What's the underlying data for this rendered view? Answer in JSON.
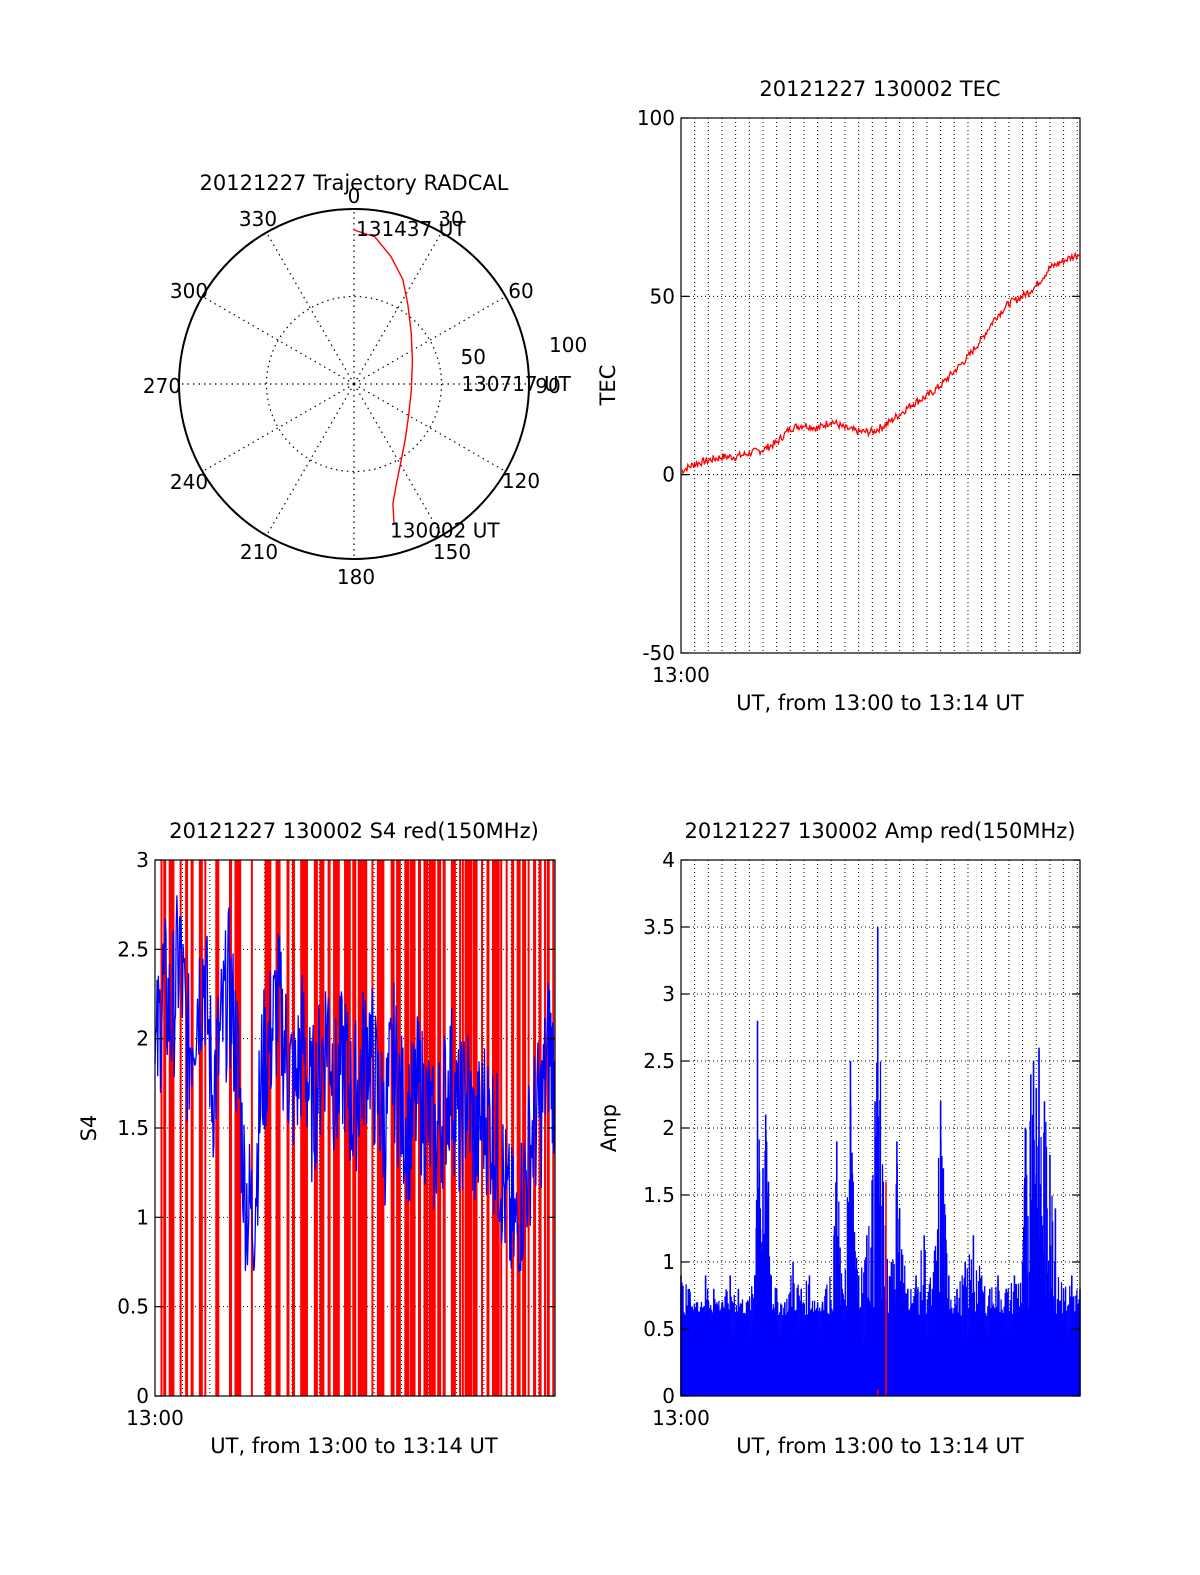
{
  "colors": {
    "red": "#ff0000",
    "blue": "#0000ff",
    "axis": "#000000",
    "grid": "#000000",
    "background": "#ffffff"
  },
  "chart_data": [
    {
      "type": "polar",
      "title": "20121227 Trajectory RADCAL",
      "azimuth_labels": [
        "0",
        "30",
        "60",
        "90",
        "120",
        "150",
        "180",
        "210",
        "240",
        "270",
        "300",
        "330"
      ],
      "radial_labels": [
        "50",
        "100"
      ],
      "radial_range": [
        0,
        100
      ],
      "grid": true,
      "series": [
        {
          "color": "red",
          "points": [
            {
              "azimuth_deg": 164,
              "zenith": 83
            },
            {
              "azimuth_deg": 162,
              "zenith": 72
            },
            {
              "azimuth_deg": 157,
              "zenith": 62
            },
            {
              "azimuth_deg": 150,
              "zenith": 53
            },
            {
              "azimuth_deg": 137,
              "zenith": 43
            },
            {
              "azimuth_deg": 120,
              "zenith": 36
            },
            {
              "azimuth_deg": 97,
              "zenith": 33
            },
            {
              "azimuth_deg": 68,
              "zenith": 36
            },
            {
              "azimuth_deg": 48,
              "zenith": 44
            },
            {
              "azimuth_deg": 34,
              "zenith": 55
            },
            {
              "azimuth_deg": 25,
              "zenith": 66
            },
            {
              "azimuth_deg": 16,
              "zenith": 76
            },
            {
              "azimuth_deg": 8,
              "zenith": 85
            },
            {
              "azimuth_deg": 0,
              "zenith": 88
            }
          ]
        }
      ],
      "annotations": [
        {
          "text": "131437 UT",
          "azimuth_deg": 0,
          "zenith": 88
        },
        {
          "text": "130717 UT",
          "azimuth_deg": 97,
          "zenith": 33
        },
        {
          "text": "130002 UT",
          "azimuth_deg": 164,
          "zenith": 83
        }
      ]
    },
    {
      "type": "line",
      "title": "20121227 130002 TEC",
      "xlabel": "UT, from 13:00 to 13:14 UT",
      "ylabel": "TEC",
      "xlim": [
        0,
        14.6
      ],
      "x_tick_labels": [
        {
          "x": 0,
          "label": "13:00"
        }
      ],
      "ylim": [
        -50,
        100
      ],
      "yticks": [
        -50,
        0,
        50,
        100
      ],
      "grid": "vertical dotted lines every 0.5 min, horizontal dotted lines at y ticks",
      "series": [
        {
          "color": "red",
          "x": [
            0,
            0.5,
            1,
            1.5,
            2,
            2.5,
            3,
            3.5,
            4,
            4.5,
            5,
            5.5,
            6,
            6.5,
            7,
            7.5,
            8,
            8.5,
            9,
            9.5,
            10,
            10.5,
            11,
            11.5,
            12,
            12.5,
            13,
            13.5,
            14,
            14.6
          ],
          "y": [
            1,
            3,
            4,
            5,
            5,
            6,
            7,
            9,
            13,
            14,
            13,
            15,
            13,
            12,
            12,
            14,
            17,
            20,
            22,
            25,
            29,
            33,
            38,
            44,
            48,
            50,
            53,
            58,
            60,
            62
          ]
        }
      ]
    },
    {
      "type": "bar",
      "title": "20121227 130002 S4 red(150MHz)",
      "xlabel": "UT, from 13:00 to 13:14 UT",
      "ylabel": "S4",
      "xlim": [
        0,
        14.6
      ],
      "x_tick_labels": [
        {
          "x": 0,
          "label": "13:00"
        }
      ],
      "ylim": [
        0,
        3
      ],
      "yticks": [
        0,
        0.5,
        1,
        1.5,
        2,
        2.5,
        3
      ],
      "ytick_labels": [
        "0",
        "0.5",
        "1",
        "1.5",
        "2",
        "2.5",
        "3"
      ],
      "series": [
        {
          "color": "red",
          "style": "vertical spikes to top of axis",
          "x": [
            0.2,
            0.3,
            0.5,
            0.6,
            0.9,
            1.1,
            1.3,
            1.6,
            1.8,
            2.2,
            2.7,
            2.9,
            3.0,
            3.5,
            4.0,
            4.1,
            4.4,
            4.8,
            5.0,
            5.3,
            5.4,
            5.8,
            6.0,
            6.3,
            6.5,
            6.6,
            6.9,
            7.0,
            7.2,
            7.4,
            7.5,
            7.6,
            7.9,
            8.1,
            8.2,
            8.3,
            8.6,
            8.8,
            8.9,
            9.1,
            9.3,
            9.4,
            9.6,
            9.8,
            10.0,
            10.1,
            10.3,
            10.5,
            10.8,
            10.9,
            11.1,
            11.2,
            11.3,
            11.4,
            11.6,
            11.7,
            11.9,
            12.1,
            12.3,
            12.4,
            12.6,
            12.8,
            13.0,
            13.2,
            13.4,
            13.6,
            13.8,
            14.0,
            14.2,
            14.3,
            14.5
          ],
          "y": [
            3,
            3,
            3,
            3,
            3,
            3,
            3,
            3,
            3,
            3,
            3,
            3,
            3,
            3,
            3,
            3,
            3,
            3,
            3,
            3,
            3,
            3,
            3,
            3,
            3,
            3,
            3,
            3,
            3,
            3,
            3,
            3,
            3,
            3,
            3,
            3,
            3,
            3,
            3,
            3,
            3,
            3,
            3,
            3,
            3,
            3,
            3,
            3,
            3,
            3,
            3,
            3,
            3,
            3,
            3,
            3,
            3,
            3,
            3,
            3,
            3,
            3,
            3,
            3,
            3,
            3,
            3,
            3,
            3,
            3,
            3
          ]
        },
        {
          "color": "blue",
          "style": "noisy line",
          "x": [
            0,
            0.3,
            0.6,
            0.9,
            1.2,
            1.5,
            1.8,
            2.1,
            2.4,
            2.7,
            3.0,
            3.3,
            3.6,
            3.9,
            4.2,
            4.5,
            4.8,
            5.1,
            5.4,
            5.7,
            6.0,
            6.3,
            6.6,
            6.9,
            7.2,
            7.5,
            7.8,
            8.1,
            8.4,
            8.7,
            9.0,
            9.3,
            9.6,
            9.9,
            10.2,
            10.5,
            10.8,
            11.1,
            11.4,
            11.7,
            12.0,
            12.3,
            12.6,
            12.9,
            13.2,
            13.5,
            13.8,
            14.1,
            14.4,
            14.6
          ],
          "y": [
            1.8,
            2.3,
            2.1,
            2.5,
            1.9,
            2.2,
            2.4,
            1.7,
            2.0,
            2.3,
            1.9,
            1.1,
            1.0,
            1.8,
            2.0,
            2.2,
            1.9,
            1.7,
            2.0,
            1.6,
            1.8,
            2.1,
            1.7,
            1.9,
            1.6,
            1.8,
            2.0,
            1.7,
            1.5,
            1.9,
            1.6,
            1.5,
            1.7,
            1.6,
            1.4,
            1.6,
            1.8,
            1.5,
            1.7,
            1.4,
            1.6,
            1.5,
            1.3,
            1.0,
            0.9,
            1.2,
            1.5,
            1.6,
            2.0,
            1.7
          ]
        }
      ]
    },
    {
      "type": "bar",
      "title": "20121227 130002 Amp red(150MHz)",
      "xlabel": "UT, from 13:00 to 13:14 UT",
      "ylabel": "Amp",
      "xlim": [
        0,
        14.6
      ],
      "x_tick_labels": [
        {
          "x": 0,
          "label": "13:00"
        }
      ],
      "ylim": [
        0,
        4
      ],
      "yticks": [
        0,
        0.5,
        1,
        1.5,
        2,
        2.5,
        3,
        3.5,
        4
      ],
      "ytick_labels": [
        "0",
        "0.5",
        "1",
        "1.5",
        "2",
        "2.5",
        "3",
        "3.5",
        "4"
      ],
      "series": [
        {
          "color": "blue",
          "style": "dense vertical spikes from 0",
          "x": [
            0,
            0.3,
            0.6,
            0.9,
            1.2,
            1.5,
            1.8,
            2.1,
            2.4,
            2.7,
            2.8,
            2.9,
            3.0,
            3.1,
            3.2,
            3.3,
            3.5,
            3.8,
            4.1,
            4.4,
            4.7,
            5.0,
            5.3,
            5.6,
            5.7,
            5.9,
            6.2,
            6.3,
            6.5,
            6.8,
            7.1,
            7.2,
            7.4,
            7.7,
            7.9,
            8.0,
            8.3,
            8.6,
            8.9,
            9.2,
            9.5,
            9.6,
            9.8,
            10.1,
            10.4,
            10.7,
            11.0,
            11.3,
            11.6,
            11.9,
            12.2,
            12.5,
            12.6,
            12.8,
            12.9,
            13.0,
            13.1,
            13.3,
            13.5,
            13.7,
            14.0,
            14.3,
            14.6
          ],
          "y": [
            0.9,
            0.8,
            0.7,
            0.9,
            0.8,
            0.7,
            0.9,
            0.8,
            0.7,
            0.9,
            2.8,
            1.4,
            1.7,
            2.1,
            1.6,
            0.9,
            0.8,
            0.7,
            1.0,
            0.8,
            0.9,
            0.7,
            0.8,
            1.2,
            1.9,
            0.8,
            2.5,
            1.6,
            0.9,
            1.2,
            2.2,
            3.5,
            1.6,
            1.0,
            1.9,
            1.4,
            0.8,
            0.9,
            1.2,
            0.8,
            2.2,
            1.7,
            0.9,
            0.8,
            1.0,
            1.2,
            0.9,
            0.8,
            0.9,
            0.8,
            0.9,
            1.0,
            2.0,
            2.4,
            2.5,
            2.3,
            2.6,
            2.2,
            1.8,
            1.4,
            0.8,
            0.9,
            0.8
          ]
        },
        {
          "color": "red",
          "style": "isolated spikes",
          "x": [
            7.2,
            7.5
          ],
          "y": [
            0.05,
            1.6
          ]
        }
      ]
    }
  ]
}
